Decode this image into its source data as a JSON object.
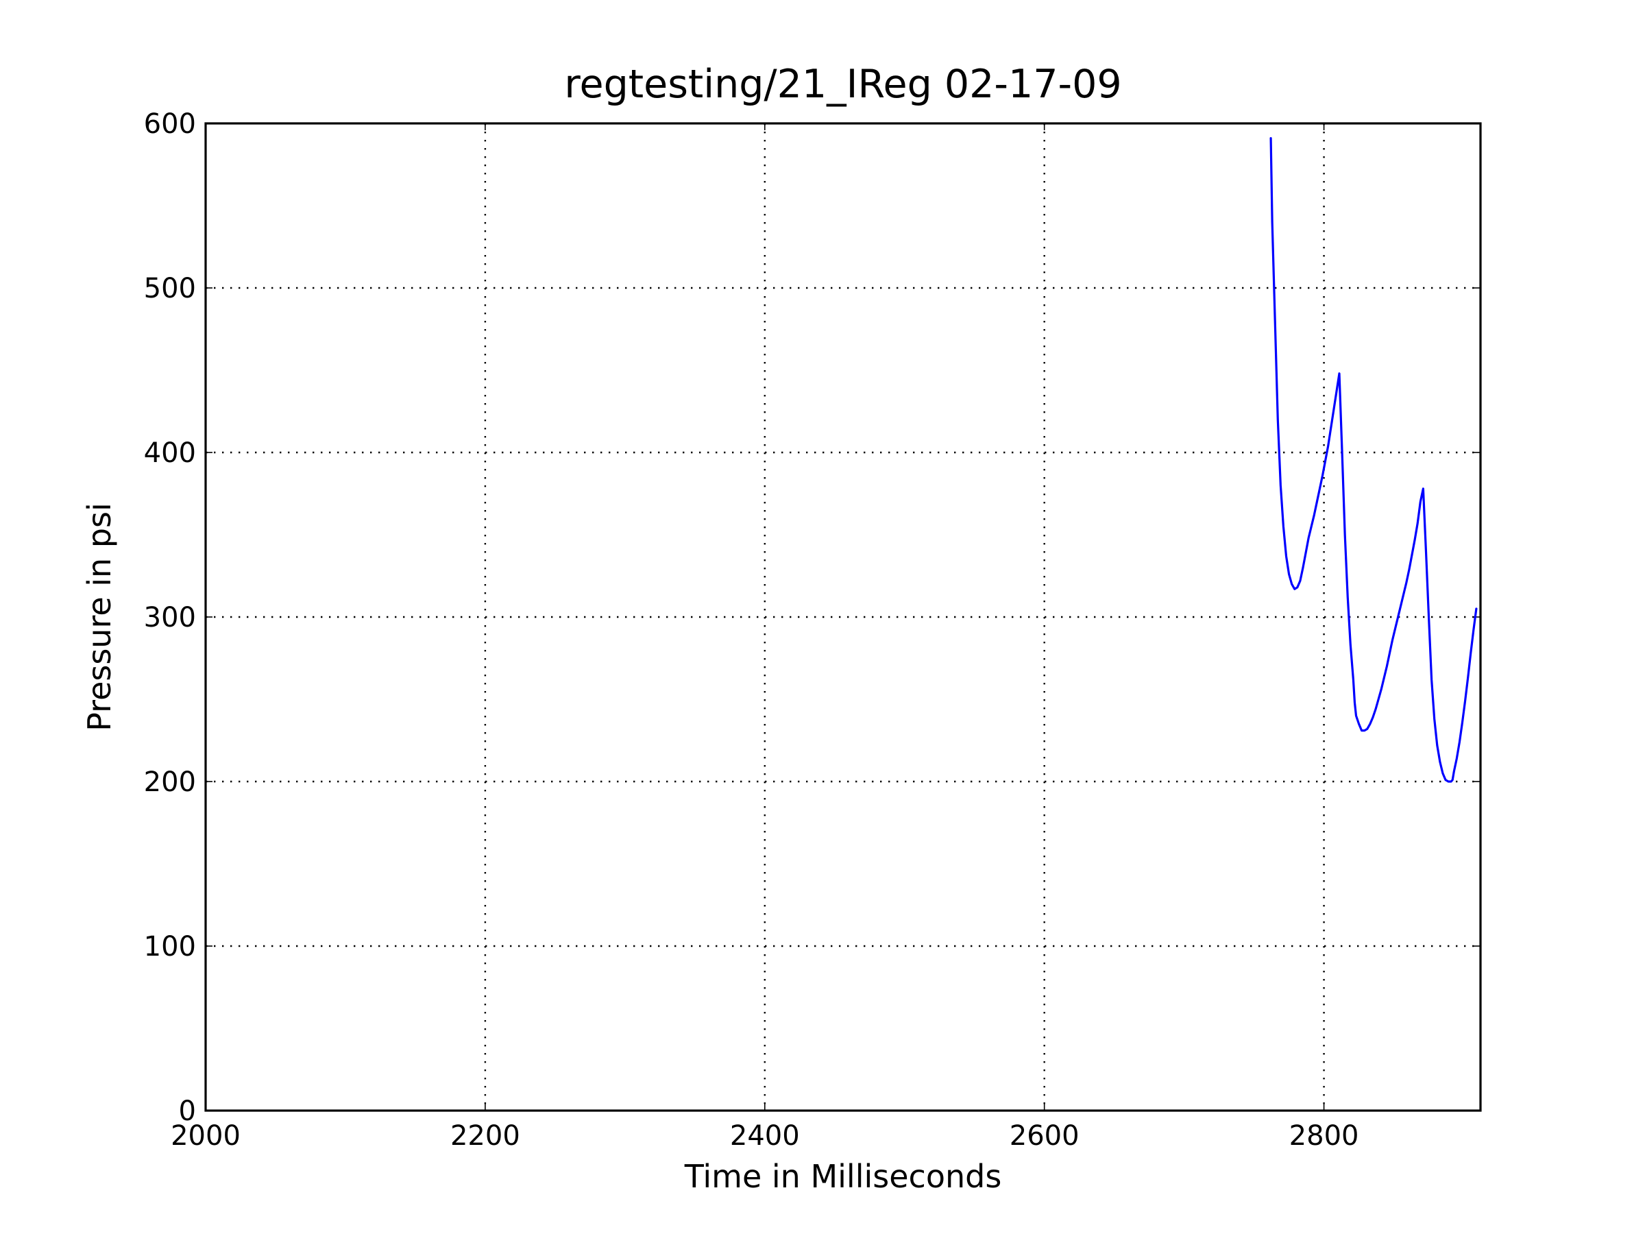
{
  "chart_data": {
    "type": "line",
    "title": "regtesting/21_IReg 02-17-09",
    "xlabel": "Time in Milliseconds",
    "ylabel": "Pressure in psi",
    "xlim": [
      2000,
      2912
    ],
    "ylim": [
      0,
      600
    ],
    "xticks": [
      2000,
      2200,
      2400,
      2600,
      2800
    ],
    "xtick_labels": [
      "2000",
      "2200",
      "2400",
      "2600",
      "2800"
    ],
    "yticks": [
      0,
      100,
      200,
      300,
      400,
      500,
      600
    ],
    "ytick_labels": [
      "0",
      "100",
      "200",
      "300",
      "400",
      "500",
      "600"
    ],
    "grid": true,
    "series": [
      {
        "color": "#0000ff",
        "x": [
          2762,
          2763,
          2765,
          2767,
          2769,
          2771,
          2773,
          2775,
          2777,
          2779,
          2781,
          2783,
          2785,
          2787,
          2789,
          2791,
          2793,
          2795,
          2797,
          2799,
          2801,
          2803,
          2805,
          2807,
          2809,
          2811,
          2813,
          2815,
          2817,
          2819,
          2821,
          2822,
          2823,
          2825,
          2827,
          2829,
          2831,
          2833,
          2835,
          2837,
          2839,
          2841,
          2843,
          2845,
          2847,
          2849,
          2851,
          2853,
          2855,
          2857,
          2859,
          2861,
          2863,
          2865,
          2867,
          2869,
          2871,
          2873,
          2875,
          2877,
          2879,
          2881,
          2883,
          2885,
          2887,
          2889,
          2891,
          2892,
          2893,
          2895,
          2897,
          2899,
          2901,
          2903,
          2905,
          2907,
          2909
        ],
        "y": [
          591,
          540,
          480,
          420,
          380,
          355,
          337,
          326,
          320,
          317,
          318,
          322,
          330,
          339,
          348,
          355,
          362,
          370,
          378,
          386,
          395,
          404,
          415,
          426,
          437,
          448,
          400,
          350,
          312,
          283,
          262,
          248,
          240,
          235,
          231,
          231,
          232,
          235,
          239,
          244,
          250,
          256,
          263,
          270,
          278,
          286,
          293,
          300,
          307,
          314,
          321,
          329,
          338,
          347,
          357,
          370,
          378,
          340,
          300,
          262,
          238,
          222,
          212,
          205,
          201,
          200,
          200,
          201,
          206,
          214,
          224,
          236,
          249,
          263,
          278,
          292,
          305
        ]
      }
    ]
  }
}
